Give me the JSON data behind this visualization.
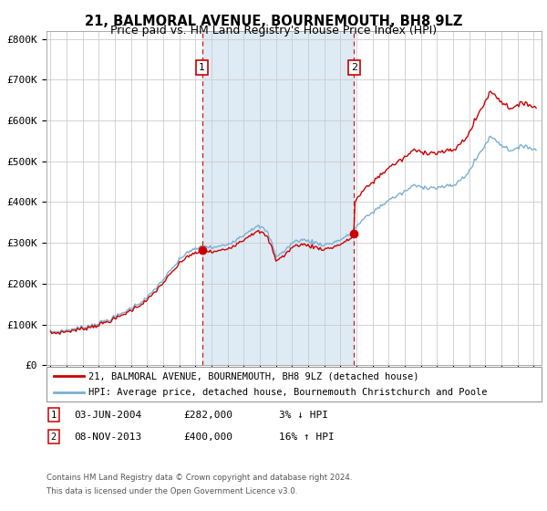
{
  "title1": "21, BALMORAL AVENUE, BOURNEMOUTH, BH8 9LZ",
  "title2": "Price paid vs. HM Land Registry's House Price Index (HPI)",
  "legend_line1": "21, BALMORAL AVENUE, BOURNEMOUTH, BH8 9LZ (detached house)",
  "legend_line2": "HPI: Average price, detached house, Bournemouth Christchurch and Poole",
  "annotation1_date": "03-JUN-2004",
  "annotation1_price": "£282,000",
  "annotation1_hpi": "3% ↓ HPI",
  "annotation2_date": "08-NOV-2013",
  "annotation2_price": "£400,000",
  "annotation2_hpi": "16% ↑ HPI",
  "footer1": "Contains HM Land Registry data © Crown copyright and database right 2024.",
  "footer2": "This data is licensed under the Open Government Licence v3.0.",
  "price_color": "#cc0000",
  "hpi_color": "#7ab0d4",
  "background_color": "#ffffff",
  "shaded_region_color": "#deeaf4",
  "grid_color": "#cccccc",
  "sale1_t": 2004.42,
  "sale1_price": 282000,
  "sale2_t": 2013.85,
  "sale2_price": 400000
}
